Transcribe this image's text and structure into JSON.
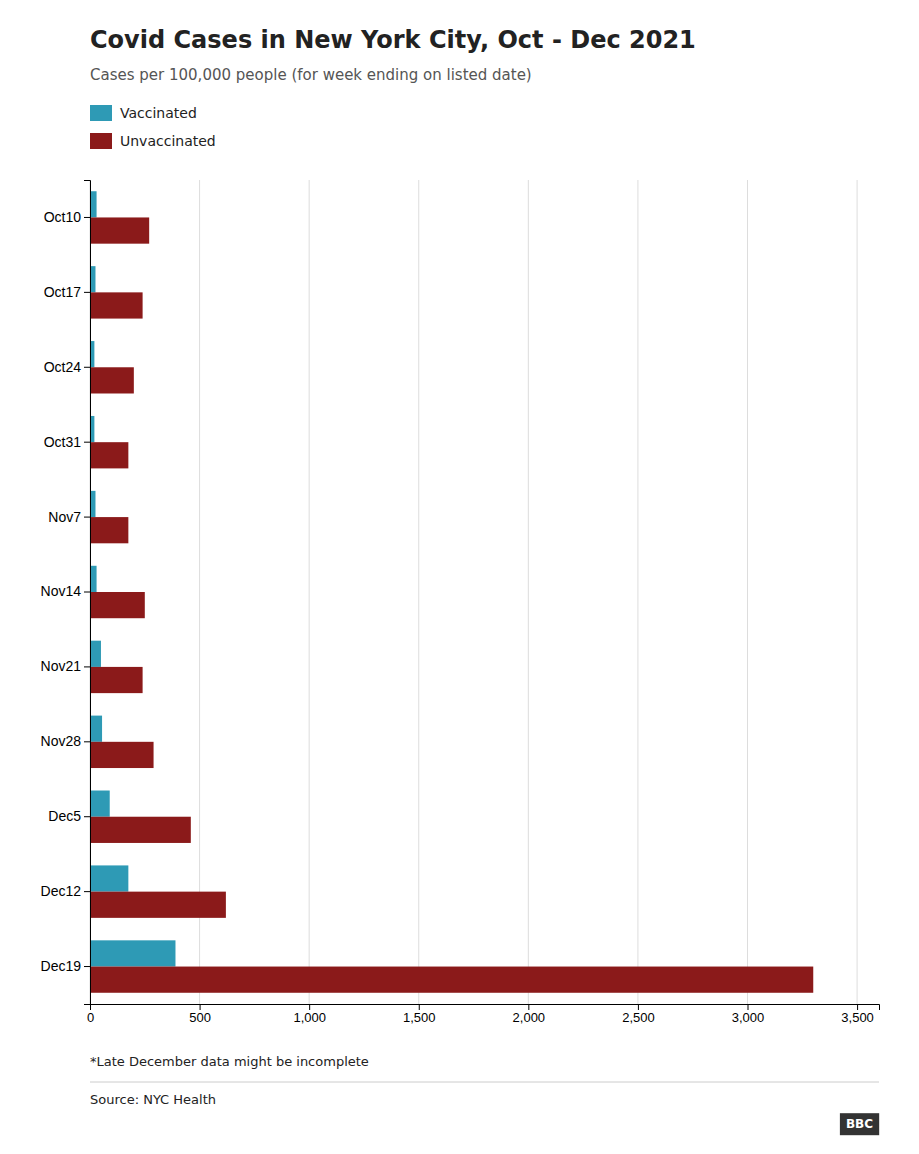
{
  "chart_data": {
    "type": "bar",
    "orientation": "horizontal",
    "title": "Covid Cases in New York City, Oct - Dec 2021",
    "subtitle": "Cases per 100,000 people (for week ending on listed date)",
    "categories": [
      "Oct10",
      "Oct17",
      "Oct24",
      "Oct31",
      "Nov7",
      "Nov14",
      "Nov21",
      "Nov28",
      "Dec5",
      "Dec12",
      "Dec19"
    ],
    "series": [
      {
        "name": "Vaccinated",
        "color": "#2e9ab5",
        "values": [
          30,
          25,
          20,
          20,
          25,
          30,
          50,
          55,
          90,
          175,
          390
        ]
      },
      {
        "name": "Unvaccinated",
        "color": "#8b1a1a",
        "values": [
          270,
          240,
          200,
          175,
          175,
          250,
          240,
          290,
          460,
          620,
          3300
        ]
      }
    ],
    "xlim": [
      0,
      3600
    ],
    "xticks": [
      0,
      500,
      {
        "value": 1000,
        "label": "1,000"
      },
      {
        "value": 1500,
        "label": "1,500"
      },
      {
        "value": 2000,
        "label": "2,000"
      },
      {
        "value": 2500,
        "label": "2,500"
      },
      {
        "value": 3000,
        "label": "3,000"
      },
      {
        "value": 3500,
        "label": "3,500"
      }
    ],
    "grid": true,
    "legend": "top",
    "annotations": [
      "*Late December data might be incomplete",
      "Source: NYC Health",
      "BBC"
    ]
  }
}
